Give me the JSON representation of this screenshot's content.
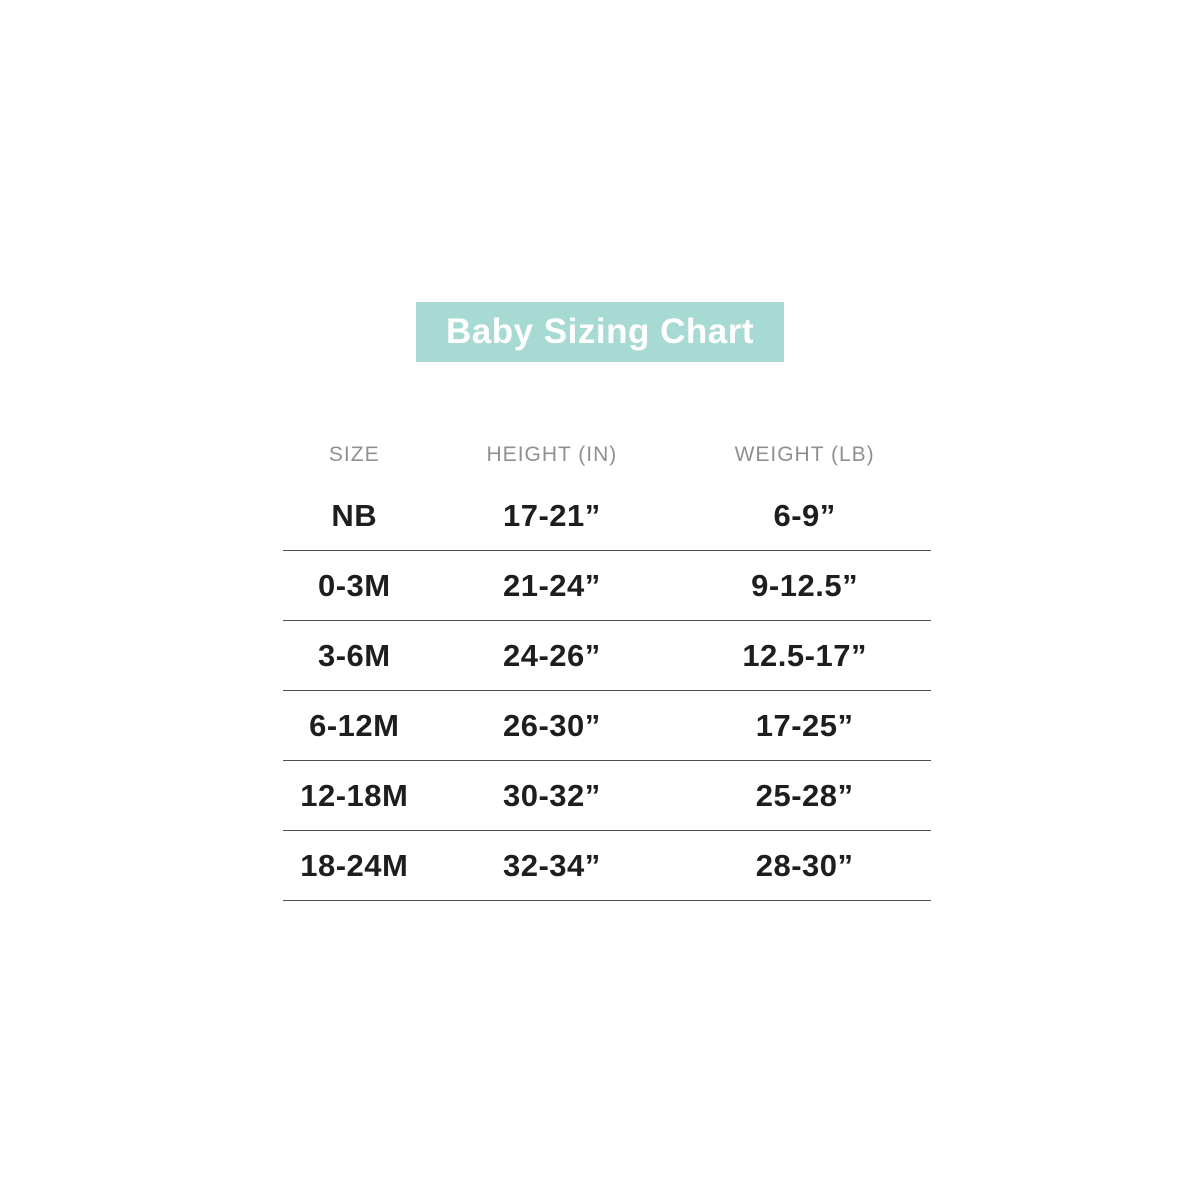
{
  "banner": {
    "title": "Baby Sizing Chart",
    "bg_color": "#a6dad3",
    "text_color": "#ffffff"
  },
  "colors": {
    "header_text": "#909090",
    "body_text": "#1e1e1e",
    "divider": "#4d4d4d",
    "page_background": "#ffffff"
  },
  "chart_data": {
    "type": "table",
    "title": "Baby Sizing Chart",
    "columns": [
      "SIZE",
      "HEIGHT (IN)",
      "WEIGHT (LB)"
    ],
    "rows": [
      [
        "NB",
        "17-21”",
        "6-9”"
      ],
      [
        "0-3M",
        "21-24”",
        "9-12.5”"
      ],
      [
        "3-6M",
        "24-26”",
        "12.5-17”"
      ],
      [
        "6-12M",
        "26-30”",
        "17-25”"
      ],
      [
        "12-18M",
        "30-32”",
        "25-28”"
      ],
      [
        "18-24M",
        "32-34”",
        "28-30”"
      ]
    ]
  }
}
